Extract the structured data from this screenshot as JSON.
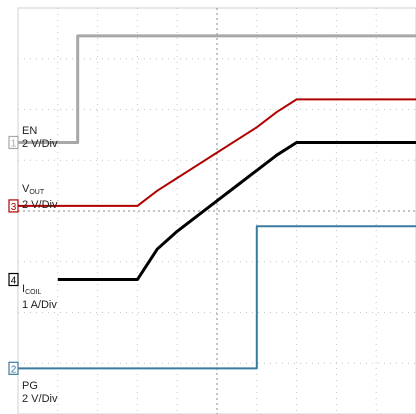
{
  "chart_data": {
    "type": "line",
    "title": "",
    "xlabel": "",
    "ylabel": "",
    "x": [
      0,
      0.5,
      1,
      1.5,
      2,
      2.5,
      3,
      3.5,
      4,
      4.5,
      5,
      5.5,
      6,
      6.5,
      7,
      7.5,
      8,
      8.5,
      9,
      9.5,
      10
    ],
    "xlim": [
      0,
      10
    ],
    "ylim": [
      0,
      8
    ],
    "grid": true,
    "series": [
      {
        "name": "EN",
        "channel_marker": "1",
        "scale": "2 V/Div",
        "color": "#a8a8a8",
        "ground_div": 5.35,
        "values": [
          0,
          0,
          0,
          2.1,
          2.1,
          2.1,
          2.1,
          2.1,
          2.1,
          2.1,
          2.1,
          2.1,
          2.1,
          2.1,
          2.1,
          2.1,
          2.1,
          2.1,
          2.1,
          2.1,
          2.1
        ]
      },
      {
        "name_main": "V",
        "name_sub": "OUT",
        "channel_marker": "3",
        "scale": "2 V/Div",
        "color": "#b00000",
        "ground_div": 4.1,
        "values": [
          0,
          0,
          0,
          0,
          0,
          0,
          0,
          0.3,
          0.55,
          0.8,
          1.05,
          1.3,
          1.55,
          1.85,
          2.1,
          2.1,
          2.1,
          2.1,
          2.1,
          2.1,
          2.1
        ]
      },
      {
        "name_main": "I",
        "name_sub": "COIL",
        "channel_marker": "4",
        "scale": "1 A/Div",
        "color": "#000000",
        "ground_div": 2.65,
        "values": [
          null,
          null,
          0,
          0,
          0,
          0,
          0,
          0.6,
          0.95,
          1.25,
          1.55,
          1.85,
          2.15,
          2.45,
          2.7,
          2.7,
          2.7,
          2.7,
          2.7,
          2.7,
          2.7
        ]
      },
      {
        "name": "PG",
        "channel_marker": "2",
        "scale": "2 V/Div",
        "color": "#3a7ca0",
        "ground_div": 0.9,
        "values": [
          0,
          0,
          0,
          0,
          0,
          0,
          0,
          0,
          0,
          0,
          0,
          0,
          2.8,
          2.8,
          2.8,
          2.8,
          2.8,
          2.8,
          2.8,
          2.8,
          2.8
        ]
      }
    ]
  }
}
